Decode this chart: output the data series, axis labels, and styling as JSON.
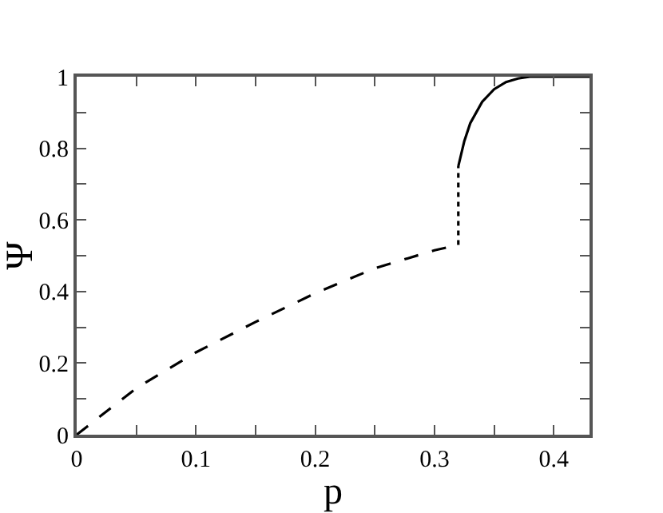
{
  "chart_data": {
    "type": "line",
    "xlabel": "p",
    "ylabel": "Ψ",
    "xlim": [
      0,
      0.43
    ],
    "ylim": [
      0,
      1
    ],
    "xticks": [
      0,
      {
        "value": 0.05,
        "label": null
      },
      0.1,
      {
        "value": 0.15,
        "label": null
      },
      0.2,
      {
        "value": 0.25,
        "label": null
      },
      0.3,
      {
        "value": 0.35,
        "label": null
      },
      0.4
    ],
    "yticks": [
      0,
      {
        "value": 0.1,
        "label": null
      },
      0.2,
      {
        "value": 0.3,
        "label": null
      },
      0.4,
      {
        "value": 0.5,
        "label": null
      },
      0.6,
      {
        "value": 0.7,
        "label": null
      },
      0.8,
      {
        "value": 0.9,
        "label": null
      },
      1
    ],
    "grid": false,
    "marker": "none",
    "series": [
      {
        "color": "#000000",
        "line_style": "dashed",
        "x": [
          0,
          0.05,
          0.1,
          0.15,
          0.2,
          0.25,
          0.3,
          0.32
        ],
        "values": [
          0,
          0.13,
          0.23,
          0.315,
          0.395,
          0.465,
          0.515,
          0.53
        ]
      },
      {
        "color": "#000000",
        "line_style": "dotted",
        "x": [
          0.32,
          0.32
        ],
        "values": [
          0.53,
          0.75
        ]
      },
      {
        "color": "#000000",
        "line_style": "solid",
        "x": [
          0.32,
          0.325,
          0.33,
          0.34,
          0.35,
          0.36,
          0.37,
          0.38,
          0.43
        ],
        "values": [
          0.75,
          0.82,
          0.87,
          0.93,
          0.965,
          0.985,
          0.995,
          1,
          1
        ]
      }
    ]
  }
}
